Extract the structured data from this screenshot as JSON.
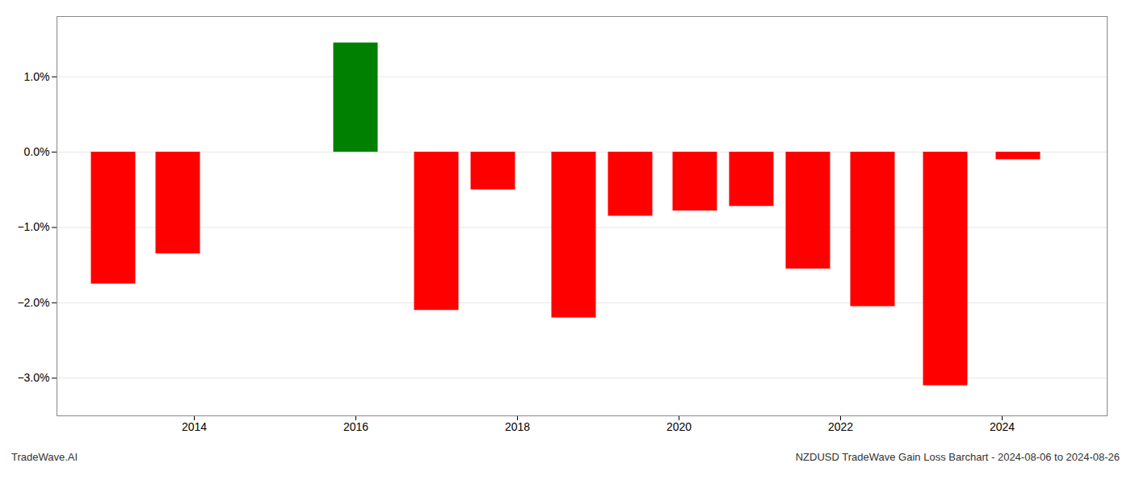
{
  "chart_data": {
    "type": "bar",
    "x": [
      2013.0,
      2013.8,
      2016.0,
      2017.0,
      2017.7,
      2018.7,
      2019.4,
      2020.2,
      2020.9,
      2021.6,
      2022.4,
      2023.3,
      2024.2
    ],
    "values": [
      -1.75,
      -1.35,
      1.45,
      -2.1,
      -0.5,
      -2.2,
      -0.85,
      -0.78,
      -0.72,
      -1.55,
      -2.05,
      -3.1,
      -0.1
    ],
    "colors": [
      "#ff0000",
      "#ff0000",
      "#008000",
      "#ff0000",
      "#ff0000",
      "#ff0000",
      "#ff0000",
      "#ff0000",
      "#ff0000",
      "#ff0000",
      "#ff0000",
      "#ff0000",
      "#ff0000"
    ],
    "xlim": [
      2012.3,
      2025.3
    ],
    "xticks": [
      2014,
      2016,
      2018,
      2020,
      2022,
      2024
    ],
    "ylim": [
      -3.5,
      1.8
    ],
    "yticks": [
      {
        "value": -3.0,
        "label": "−3.0%"
      },
      {
        "value": -2.0,
        "label": "−2.0%"
      },
      {
        "value": -1.0,
        "label": "−1.0%"
      },
      {
        "value": 0.0,
        "label": "0.0%"
      },
      {
        "value": 1.0,
        "label": "1.0%"
      }
    ],
    "grid": true,
    "annotations": [
      "TradeWave.AI",
      "NZDUSD TradeWave Gain Loss Barchart - 2024-08-06 to 2024-08-26"
    ]
  }
}
